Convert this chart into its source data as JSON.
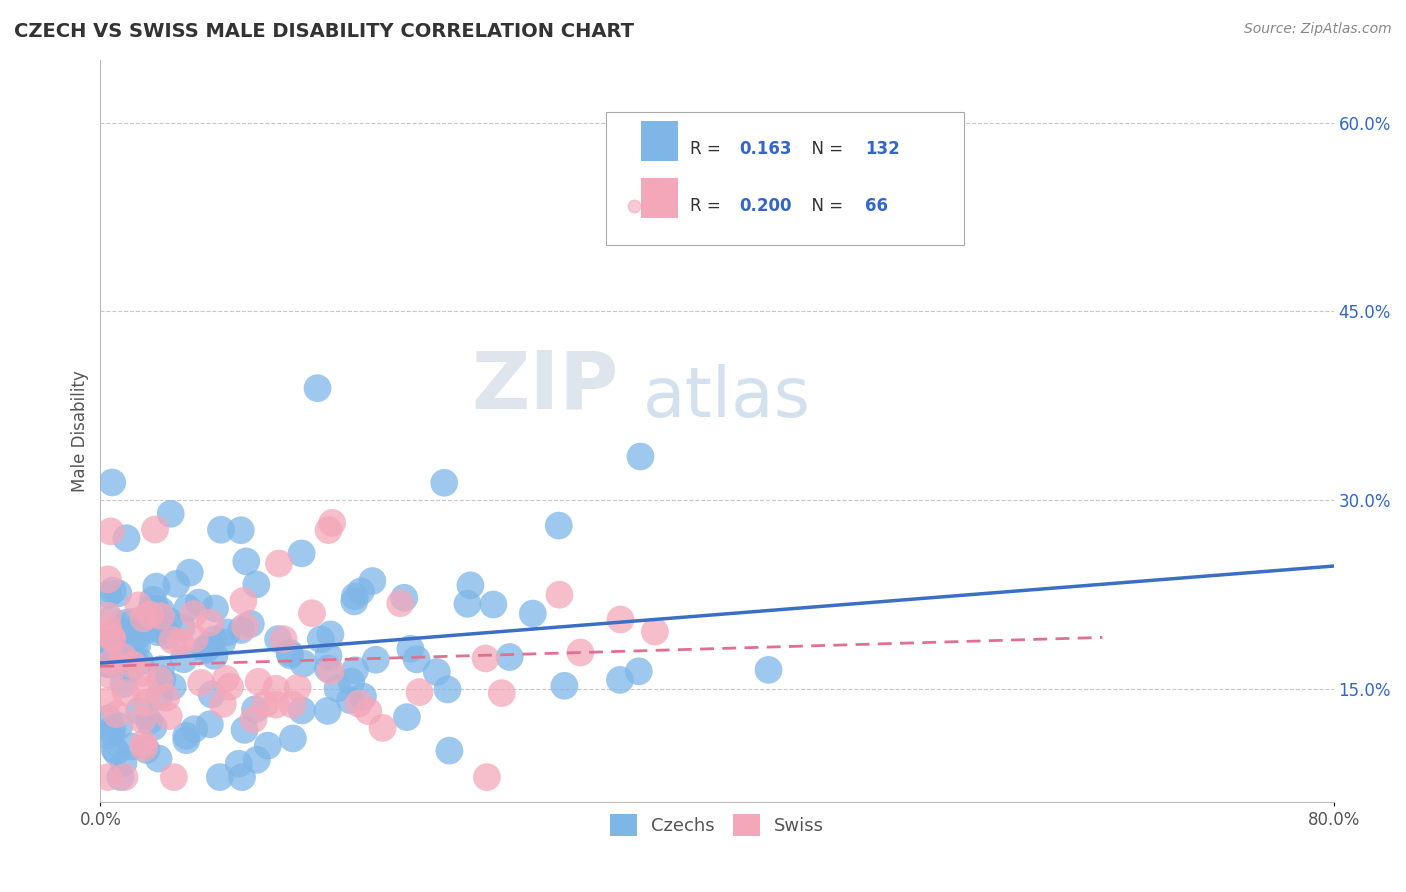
{
  "title": "CZECH VS SWISS MALE DISABILITY CORRELATION CHART",
  "source": "Source: ZipAtlas.com",
  "ylabel": "Male Disability",
  "xlim": [
    0.0,
    0.8
  ],
  "ylim": [
    0.06,
    0.65
  ],
  "yticks": [
    0.15,
    0.3,
    0.45,
    0.6
  ],
  "xticks": [
    0.0,
    0.8
  ],
  "czechs_color": "#7EB6E8",
  "swiss_color": "#F4A7B9",
  "czechs_line_color": "#3A6FC4",
  "swiss_line_color": "#E07090",
  "czechs_R": 0.163,
  "czechs_N": 132,
  "swiss_R": 0.2,
  "swiss_N": 66,
  "background_color": "#FFFFFF",
  "grid_color": "#C8C8C8",
  "watermark_ZIP": "ZIP",
  "watermark_atlas": "atlas",
  "watermark_ZIP_color": "#C8D4E0",
  "watermark_atlas_color": "#A8C4E0",
  "legend_label_czechs": "Czechs",
  "legend_label_swiss": "Swiss",
  "r_text_color": "#3366CC",
  "title_color": "#333333",
  "source_color": "#888888",
  "ylabel_color": "#555555"
}
